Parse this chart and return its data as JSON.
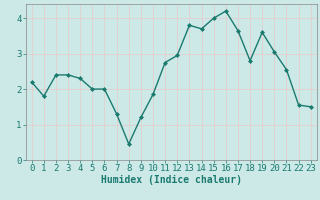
{
  "xlabel": "Humidex (Indice chaleur)",
  "ylabel": "",
  "x": [
    0,
    1,
    2,
    3,
    4,
    5,
    6,
    7,
    8,
    9,
    10,
    11,
    12,
    13,
    14,
    15,
    16,
    17,
    18,
    19,
    20,
    21,
    22,
    23
  ],
  "y": [
    2.2,
    1.8,
    2.4,
    2.4,
    2.3,
    2.0,
    2.0,
    1.3,
    0.45,
    1.2,
    1.85,
    2.75,
    2.95,
    3.8,
    3.7,
    4.0,
    4.2,
    3.65,
    2.8,
    3.6,
    3.05,
    2.55,
    1.55,
    1.5
  ],
  "line_color": "#1a7a6e",
  "marker": "D",
  "marker_size": 2.0,
  "line_width": 1.0,
  "background_color": "#cce9e8",
  "grid_color": "#e8c8c8",
  "ylim": [
    0,
    4.4
  ],
  "xlim": [
    -0.5,
    23.5
  ],
  "yticks": [
    0,
    1,
    2,
    3,
    4
  ],
  "xticks": [
    0,
    1,
    2,
    3,
    4,
    5,
    6,
    7,
    8,
    9,
    10,
    11,
    12,
    13,
    14,
    15,
    16,
    17,
    18,
    19,
    20,
    21,
    22,
    23
  ],
  "xlabel_fontsize": 7,
  "tick_fontsize": 6.5,
  "spine_color": "#888888"
}
